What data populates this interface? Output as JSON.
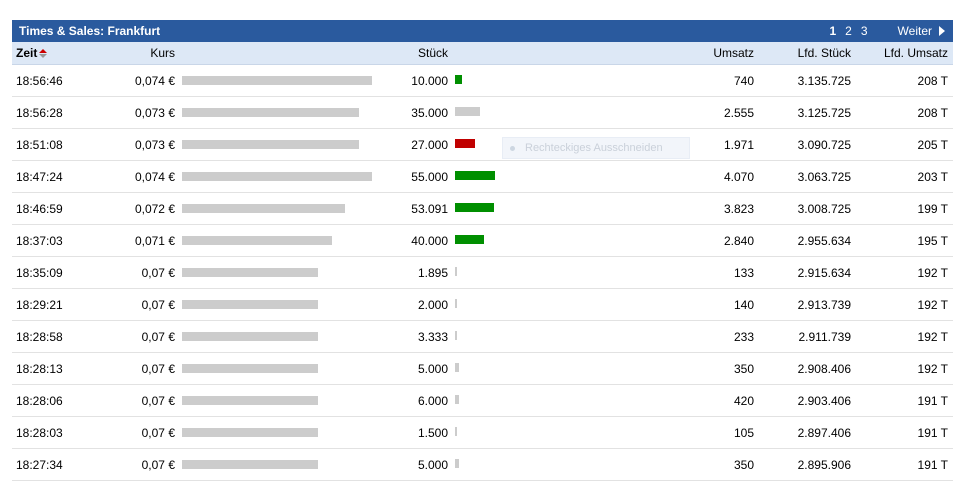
{
  "header": {
    "title": "Times & Sales: Frankfurt",
    "pages": [
      "1",
      "2",
      "3"
    ],
    "active_page": "1",
    "next_label": "Weiter"
  },
  "columns": {
    "time": "Zeit",
    "kurs": "Kurs",
    "stueck": "Stück",
    "umsatz": "Umsatz",
    "lfd_stueck": "Lfd. Stück",
    "lfd_umsatz": "Lfd. Umsatz"
  },
  "rows": [
    {
      "time": "18:56:46",
      "kurs": "0,074 €",
      "stueck": "10.000",
      "umsatz": "740",
      "lfd_stueck": "3.135.725",
      "lfd_umsatz": "208 T",
      "kurs_value": 0.074,
      "stueck_value": 10000,
      "trend": "green"
    },
    {
      "time": "18:56:28",
      "kurs": "0,073 €",
      "stueck": "35.000",
      "umsatz": "2.555",
      "lfd_stueck": "3.125.725",
      "lfd_umsatz": "208 T",
      "kurs_value": 0.073,
      "stueck_value": 35000,
      "trend": "grey"
    },
    {
      "time": "18:51:08",
      "kurs": "0,073 €",
      "stueck": "27.000",
      "umsatz": "1.971",
      "lfd_stueck": "3.090.725",
      "lfd_umsatz": "205 T",
      "kurs_value": 0.073,
      "stueck_value": 27000,
      "trend": "red"
    },
    {
      "time": "18:47:24",
      "kurs": "0,074 €",
      "stueck": "55.000",
      "umsatz": "4.070",
      "lfd_stueck": "3.063.725",
      "lfd_umsatz": "203 T",
      "kurs_value": 0.074,
      "stueck_value": 55000,
      "trend": "green"
    },
    {
      "time": "18:46:59",
      "kurs": "0,072 €",
      "stueck": "53.091",
      "umsatz": "3.823",
      "lfd_stueck": "3.008.725",
      "lfd_umsatz": "199 T",
      "kurs_value": 0.072,
      "stueck_value": 53091,
      "trend": "green"
    },
    {
      "time": "18:37:03",
      "kurs": "0,071 €",
      "stueck": "40.000",
      "umsatz": "2.840",
      "lfd_stueck": "2.955.634",
      "lfd_umsatz": "195 T",
      "kurs_value": 0.071,
      "stueck_value": 40000,
      "trend": "green"
    },
    {
      "time": "18:35:09",
      "kurs": "0,07 €",
      "stueck": "1.895",
      "umsatz": "133",
      "lfd_stueck": "2.915.634",
      "lfd_umsatz": "192 T",
      "kurs_value": 0.07,
      "stueck_value": 1895,
      "trend": "grey"
    },
    {
      "time": "18:29:21",
      "kurs": "0,07 €",
      "stueck": "2.000",
      "umsatz": "140",
      "lfd_stueck": "2.913.739",
      "lfd_umsatz": "192 T",
      "kurs_value": 0.07,
      "stueck_value": 2000,
      "trend": "grey"
    },
    {
      "time": "18:28:58",
      "kurs": "0,07 €",
      "stueck": "3.333",
      "umsatz": "233",
      "lfd_stueck": "2.911.739",
      "lfd_umsatz": "192 T",
      "kurs_value": 0.07,
      "stueck_value": 3333,
      "trend": "grey"
    },
    {
      "time": "18:28:13",
      "kurs": "0,07 €",
      "stueck": "5.000",
      "umsatz": "350",
      "lfd_stueck": "2.908.406",
      "lfd_umsatz": "192 T",
      "kurs_value": 0.07,
      "stueck_value": 5000,
      "trend": "grey"
    },
    {
      "time": "18:28:06",
      "kurs": "0,07 €",
      "stueck": "6.000",
      "umsatz": "420",
      "lfd_stueck": "2.903.406",
      "lfd_umsatz": "191 T",
      "kurs_value": 0.07,
      "stueck_value": 6000,
      "trend": "grey"
    },
    {
      "time": "18:28:03",
      "kurs": "0,07 €",
      "stueck": "1.500",
      "umsatz": "105",
      "lfd_stueck": "2.897.406",
      "lfd_umsatz": "191 T",
      "kurs_value": 0.07,
      "stueck_value": 1500,
      "trend": "grey"
    },
    {
      "time": "18:27:34",
      "kurs": "0,07 €",
      "stueck": "5.000",
      "umsatz": "350",
      "lfd_stueck": "2.895.906",
      "lfd_umsatz": "191 T",
      "kurs_value": 0.07,
      "stueck_value": 5000,
      "trend": "grey"
    }
  ],
  "overlay": {
    "label": "Rechteckiges Ausschneiden"
  },
  "colors": {
    "titlebar": "#2a5a9e",
    "header_row": "#dde8f6",
    "bar_neutral": "#cccccc",
    "bar_up": "#008f00",
    "bar_down": "#c00000"
  },
  "icons": {
    "sort": "sort-arrows-icon",
    "next": "triangle-right-icon"
  }
}
